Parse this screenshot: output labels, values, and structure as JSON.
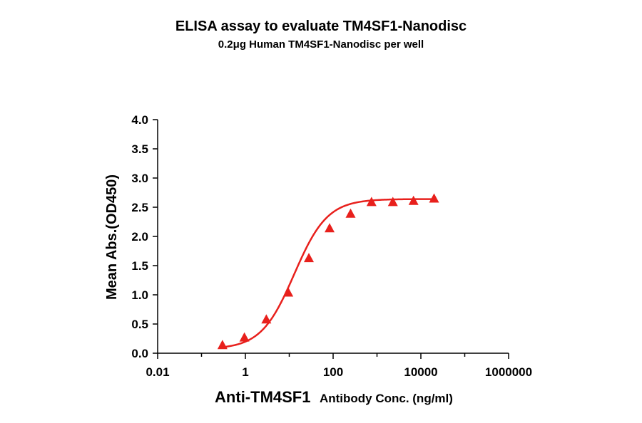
{
  "chart_data": {
    "type": "scatter",
    "title": "ELISA assay to evaluate TM4SF1-Nanodisc",
    "subtitle": "0.2μg Human TM4SF1-Nanodisc per well",
    "xlabel_main": "Anti-TM4SF1",
    "xlabel_rest": "Antibody Conc. (ng/ml)",
    "ylabel": "Mean Abs.(OD450)",
    "x_scale": "log",
    "xlim": [
      0.01,
      1000000
    ],
    "ylim": [
      0,
      4.0
    ],
    "x_ticks": [
      "0.01",
      "1",
      "100",
      "10000",
      "1000000"
    ],
    "x_tick_values": [
      0.01,
      1,
      100,
      10000,
      1000000
    ],
    "y_ticks": [
      "0.0",
      "0.5",
      "1.0",
      "1.5",
      "2.0",
      "2.5",
      "3.0",
      "3.5",
      "4.0"
    ],
    "y_tick_values": [
      0,
      0.5,
      1.0,
      1.5,
      2.0,
      2.5,
      3.0,
      3.5,
      4.0
    ],
    "series": [
      {
        "marker": "triangle",
        "color": "#e8201c",
        "x": [
          0.3,
          0.95,
          3.0,
          9.5,
          28,
          83,
          250,
          750,
          2300,
          6800,
          20000
        ],
        "y": [
          0.13,
          0.26,
          0.57,
          1.03,
          1.62,
          2.13,
          2.38,
          2.58,
          2.58,
          2.6,
          2.64
        ]
      }
    ],
    "fit_curve": {
      "type": "4PL",
      "color": "#e8201c",
      "bottom": 0.07,
      "top": 2.64,
      "ec50": 13,
      "hill": 1.15,
      "x_range": [
        0.3,
        20000
      ]
    }
  }
}
